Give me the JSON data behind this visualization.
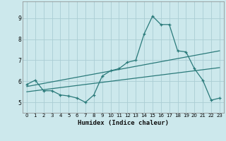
{
  "background_color": "#cce8ec",
  "grid_color": "#aacdd4",
  "line_color": "#2a7a7a",
  "x_label": "Humidex (Indice chaleur)",
  "xlim": [
    -0.5,
    23.5
  ],
  "ylim": [
    4.5,
    9.8
  ],
  "yticks": [
    5,
    6,
    7,
    8,
    9
  ],
  "xticks": [
    0,
    1,
    2,
    3,
    4,
    5,
    6,
    7,
    8,
    9,
    10,
    11,
    12,
    13,
    14,
    15,
    16,
    17,
    18,
    19,
    20,
    21,
    22,
    23
  ],
  "series1": {
    "x": [
      0,
      1,
      2,
      3,
      4,
      5,
      6,
      7,
      8,
      9,
      10,
      11,
      12,
      13,
      14,
      15,
      16,
      17,
      18,
      19,
      20,
      21,
      22,
      23
    ],
    "y": [
      5.85,
      6.05,
      5.55,
      5.55,
      5.35,
      5.3,
      5.2,
      5.0,
      5.35,
      6.25,
      6.5,
      6.6,
      6.9,
      7.0,
      8.25,
      9.1,
      8.7,
      8.7,
      7.45,
      7.4,
      6.6,
      6.05,
      5.1,
      5.2
    ]
  },
  "series2": {
    "x": [
      0,
      23
    ],
    "y": [
      5.75,
      7.45
    ]
  },
  "series3": {
    "x": [
      0,
      23
    ],
    "y": [
      5.5,
      6.65
    ]
  }
}
